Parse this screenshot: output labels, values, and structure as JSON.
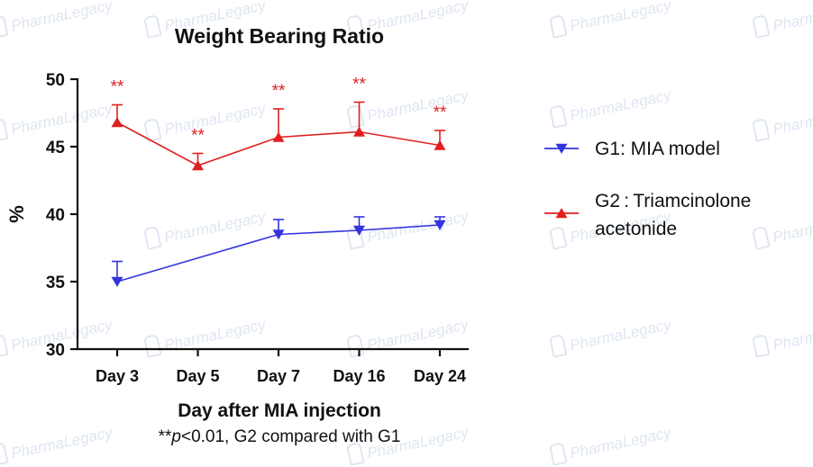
{
  "watermark": "PharmaLegacy",
  "chart_data": {
    "type": "line",
    "title": "Weight Bearing Ratio",
    "xlabel": "Day after MIA injection",
    "ylabel": "%",
    "footnote": {
      "prefix": "**",
      "p": "p",
      "suffix": "<0.01, G2 compared with G1"
    },
    "categories": [
      "Day 3",
      "Day 5",
      "Day 7",
      "Day 16",
      "Day 24"
    ],
    "ylim": [
      30,
      50
    ],
    "yticks": [
      30,
      35,
      40,
      45,
      50
    ],
    "grid": false,
    "legend_position": "right",
    "significance_marker": "**",
    "significance_categories": [
      "Day 3",
      "Day 5",
      "Day 7",
      "Day 16",
      "Day 24"
    ],
    "series": [
      {
        "name": "G1: MIA model",
        "marker": "triangle-down",
        "color": "#3333e0",
        "values": [
          35.0,
          null,
          38.5,
          38.8,
          39.2
        ],
        "errors": [
          1.5,
          null,
          1.1,
          1.0,
          0.6
        ]
      },
      {
        "name": "G2 : Triamcinolone acetonide",
        "legend_lines": [
          "G2 : Triamcinolone",
          "acetonide"
        ],
        "marker": "triangle-up",
        "color": "#e02020",
        "values": [
          46.8,
          43.6,
          45.7,
          46.1,
          45.1
        ],
        "errors": [
          1.3,
          0.9,
          2.1,
          2.2,
          1.1
        ]
      }
    ]
  }
}
